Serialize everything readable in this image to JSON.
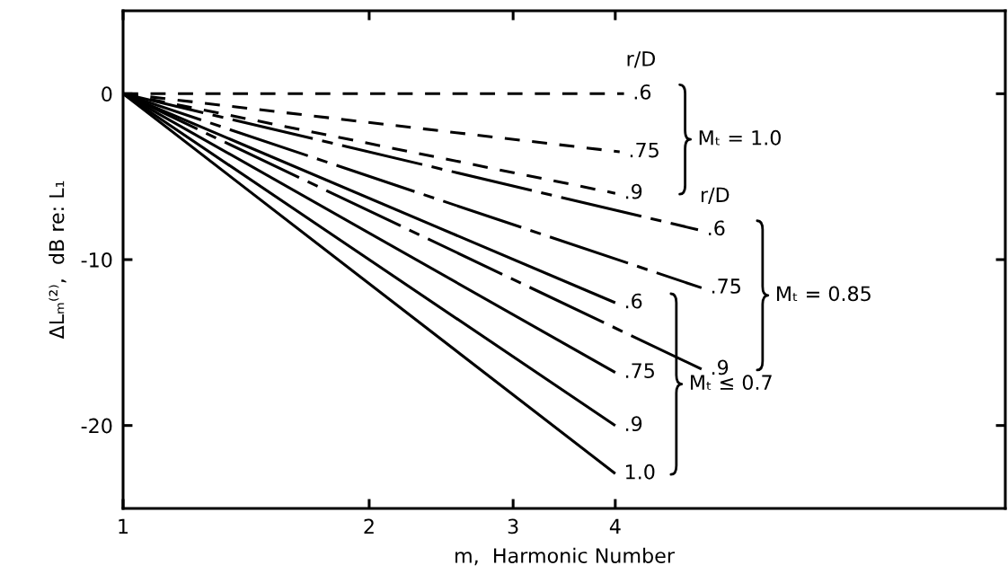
{
  "chart_data": {
    "type": "line",
    "xlabel": "m,  Harmonic Number",
    "ylabel": "ΔLₘ⁽²⁾,  dB re: L₁",
    "log": "x",
    "xlim": [
      1,
      12
    ],
    "xticks": [
      1,
      2,
      3,
      4
    ],
    "ylim": [
      -25,
      5
    ],
    "yticks": [
      -20,
      -10,
      0
    ],
    "series": [
      {
        "name": ".6",
        "color": "#000000",
        "line_style": "dashed",
        "x": [
          1,
          4.1
        ],
        "values": [
          0,
          0
        ]
      },
      {
        "name": ".75",
        "color": "#000000",
        "line_style": "dashed",
        "x": [
          1,
          4.05
        ],
        "values": [
          0,
          -3.5
        ]
      },
      {
        "name": ".9",
        "color": "#000000",
        "line_style": "dashed",
        "x": [
          1,
          4.0
        ],
        "values": [
          0,
          -6.0
        ]
      },
      {
        "name": ".6",
        "color": "#000000",
        "line_style": "dashdot",
        "x": [
          1,
          5.05
        ],
        "values": [
          0,
          -8.2
        ]
      },
      {
        "name": ".75",
        "color": "#000000",
        "line_style": "dashdot",
        "x": [
          1,
          5.1
        ],
        "values": [
          0,
          -11.7
        ]
      },
      {
        "name": ".9",
        "color": "#000000",
        "line_style": "dashdot",
        "x": [
          1,
          5.1
        ],
        "values": [
          0,
          -16.6
        ]
      },
      {
        "name": ".6",
        "color": "#000000",
        "line_style": "solid",
        "x": [
          1,
          4
        ],
        "values": [
          0,
          -12.6
        ]
      },
      {
        "name": ".75",
        "color": "#000000",
        "line_style": "solid",
        "x": [
          1,
          4
        ],
        "values": [
          0,
          -16.8
        ]
      },
      {
        "name": ".9",
        "color": "#000000",
        "line_style": "solid",
        "x": [
          1,
          4
        ],
        "values": [
          0,
          -20.0
        ]
      },
      {
        "name": "1.0",
        "color": "#000000",
        "line_style": "solid",
        "x": [
          1,
          4
        ],
        "values": [
          0,
          -22.9
        ]
      }
    ],
    "annotations": [
      "r/D",
      "Mₜ = 1.0",
      "r/D",
      "Mₜ = 0.85",
      "Mₜ ≤ 0.7"
    ]
  }
}
